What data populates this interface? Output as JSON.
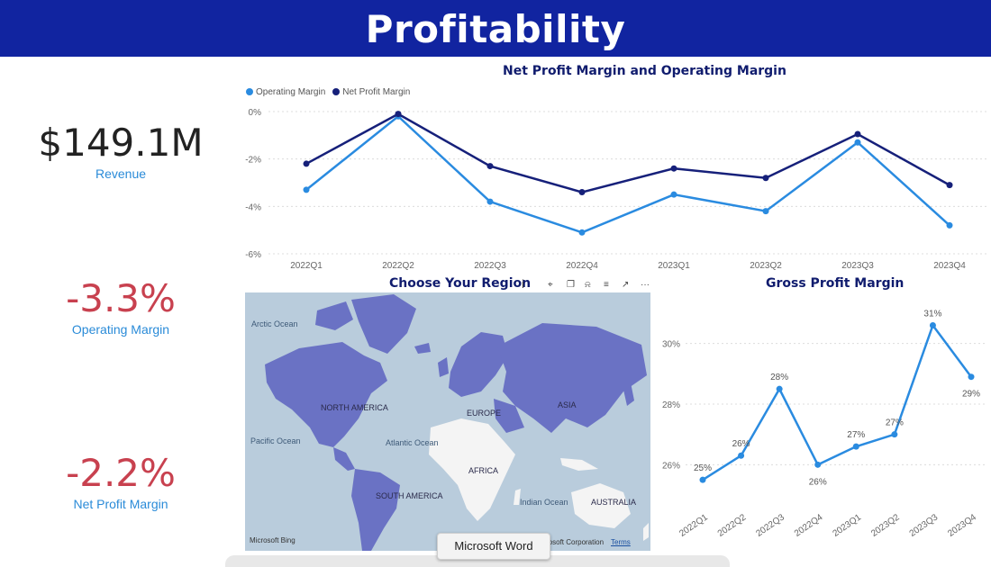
{
  "header": {
    "title": "Profitability"
  },
  "kpis": [
    {
      "value": "$149.1M",
      "label": "Revenue",
      "color": "#222222"
    },
    {
      "value": "-3.3%",
      "label": "Operating Margin",
      "color": "#c8414f"
    },
    {
      "value": "-2.2%",
      "label": "Net Profit Margin",
      "color": "#c8414f"
    }
  ],
  "colors": {
    "header_bg": "#1124a0",
    "title": "#101c6e",
    "light_series": "#2a8be0",
    "dark_series": "#16207a",
    "land": "#6a72c4"
  },
  "map": {
    "title": "Choose Your Region",
    "labels": {
      "arctic": "Arctic Ocean",
      "pacific": "Pacific Ocean",
      "atlantic": "Atlantic Ocean",
      "indian": "Indian Ocean",
      "north_america": "NORTH AMERICA",
      "south_america": "SOUTH AMERICA",
      "europe": "EUROPE",
      "asia": "ASIA",
      "africa": "AFRICA",
      "australia": "AUSTRALIA"
    },
    "bing": "Microsoft Bing",
    "copyright": "rosoft Corporation",
    "terms": "Terms",
    "toolbar": {
      "info": "i",
      "more": "···"
    }
  },
  "tooltip": {
    "text": "Microsoft Word"
  },
  "chart_data": [
    {
      "type": "line",
      "title": "Net Profit Margin and Operating Margin",
      "categories": [
        "2022Q1",
        "2022Q2",
        "2022Q3",
        "2022Q4",
        "2023Q1",
        "2023Q2",
        "2023Q3",
        "2023Q4"
      ],
      "series": [
        {
          "name": "Operating Margin",
          "color": "#2a8be0",
          "values": [
            -3.3,
            -0.2,
            -3.8,
            -5.1,
            -3.5,
            -4.2,
            -1.3,
            -4.8
          ]
        },
        {
          "name": "Net Profit Margin",
          "color": "#16207a",
          "values": [
            -2.2,
            -0.1,
            -2.3,
            -3.4,
            -2.4,
            -2.8,
            -0.95,
            -3.1
          ]
        }
      ],
      "ylim": [
        -6,
        0
      ],
      "yticks": [
        "0%",
        "-2%",
        "-4%",
        "-6%"
      ],
      "legend": "top-left",
      "grid": true
    },
    {
      "type": "line",
      "title": "Gross Profit Margin",
      "categories": [
        "2022Q1",
        "2022Q2",
        "2022Q3",
        "2022Q4",
        "2023Q1",
        "2023Q2",
        "2023Q3",
        "2023Q4"
      ],
      "series": [
        {
          "color": "#2a8be0",
          "values": [
            25.5,
            26.3,
            28.5,
            26.0,
            26.6,
            27.0,
            30.6,
            28.9
          ],
          "labels": [
            "25%",
            "26%",
            "28%",
            "26%",
            "27%",
            "27%",
            "31%",
            "29%"
          ]
        }
      ],
      "ylim": [
        25,
        31
      ],
      "yticks": [
        "30%",
        "28%",
        "26%"
      ],
      "grid": true
    }
  ]
}
